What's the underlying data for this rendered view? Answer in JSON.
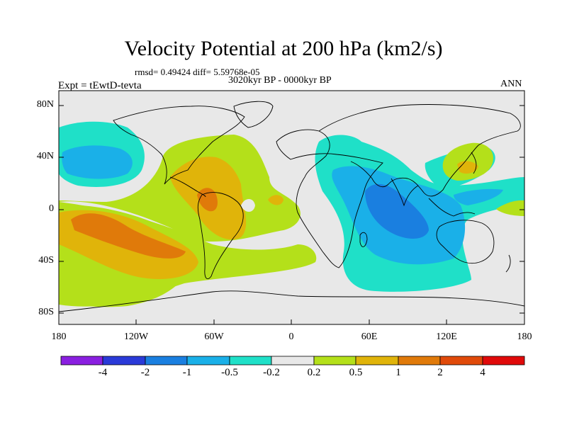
{
  "title": "Velocity Potential at 200 hPa (km2/s)",
  "stats": "rmsd= 0.49424 diff= 5.59768e-05",
  "period": "3020kyr BP - 0000kyr BP",
  "experiment": "Expt = tEwtD-tevta",
  "season": "ANN",
  "axes": {
    "y_ticks": [
      "80N",
      "40N",
      "0",
      "40S",
      "80S"
    ],
    "x_ticks": [
      "180",
      "120W",
      "60W",
      "0",
      "60E",
      "120E",
      "180"
    ]
  },
  "colorbar": {
    "labels": [
      "-4",
      "-2",
      "-1",
      "-0.5",
      "-0.2",
      "0.2",
      "0.5",
      "1",
      "2",
      "4"
    ],
    "colors": [
      "#8a1fe0",
      "#2a3ad8",
      "#1a7fe0",
      "#1ab0e8",
      "#1fe0c8",
      "#e8e8e8",
      "#b4e01a",
      "#e0b40a",
      "#e07a0a",
      "#e04a0a",
      "#e00a0a"
    ]
  },
  "colors": {
    "neutral": "#e8e8e8",
    "weak_pos": "#b4e01a",
    "mod_pos": "#e0b40a",
    "strong_pos": "#e07a0a",
    "weak_neg": "#1fe0c8",
    "mod_neg": "#1ab0e8",
    "strong_neg": "#1a7fe0"
  }
}
